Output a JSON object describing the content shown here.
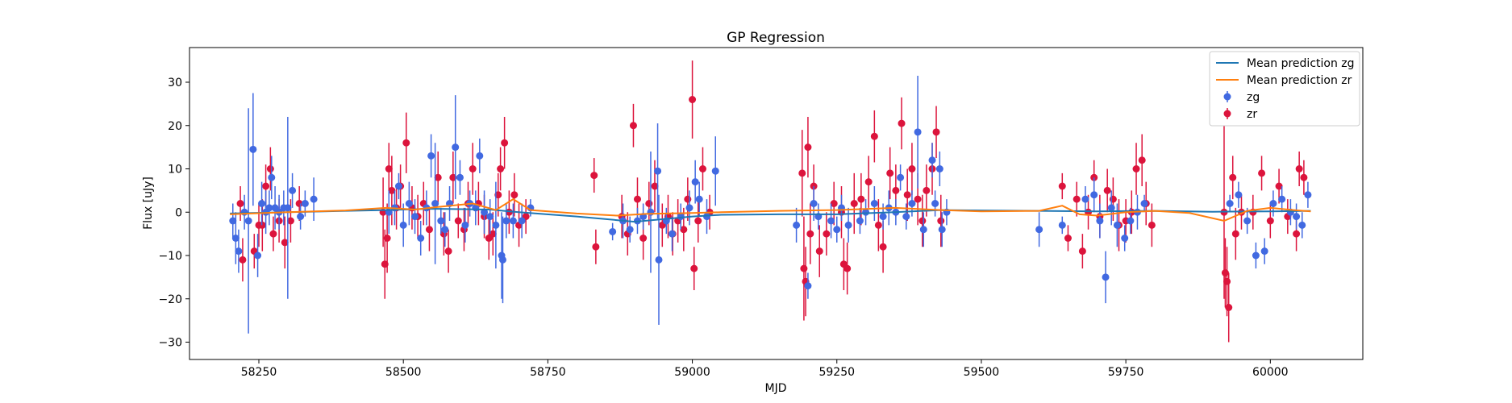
{
  "chart_data": {
    "type": "scatter",
    "title": "GP Regression",
    "xlabel": "MJD",
    "ylabel": "Flux [uJy]",
    "xlim": [
      58130,
      60160
    ],
    "ylim": [
      -34,
      38
    ],
    "xticks": [
      58250,
      58500,
      58750,
      59000,
      59250,
      59500,
      59750,
      60000
    ],
    "yticks": [
      -30,
      -20,
      -10,
      0,
      10,
      20,
      30
    ],
    "grid": false,
    "legend_position": "top-right",
    "colors": {
      "zg_line": "#1f77b4",
      "zr_line": "#ff7f0e",
      "zg_points": "#4169e1",
      "zr_points": "#dc143c"
    },
    "series": [
      {
        "name": "Mean prediction zg",
        "kind": "line",
        "x": [
          58200,
          58300,
          58400,
          58470,
          58550,
          58650,
          58700,
          58800,
          58900,
          59000,
          59050,
          59150,
          59250,
          59350,
          59430,
          59500,
          59600,
          59700,
          59800,
          59900,
          60000,
          60070
        ],
        "y": [
          -0.3,
          0.0,
          0.3,
          0.5,
          0.8,
          0.6,
          0.0,
          -1.0,
          -2.2,
          -1.0,
          -0.6,
          -0.5,
          -0.5,
          0.0,
          0.5,
          0.4,
          0.3,
          0.2,
          0.3,
          0.1,
          0.2,
          0.3
        ]
      },
      {
        "name": "Mean prediction zr",
        "kind": "line",
        "x": [
          58200,
          58260,
          58300,
          58400,
          58470,
          58520,
          58560,
          58620,
          58660,
          58690,
          58720,
          58800,
          58870,
          58920,
          59000,
          59050,
          59150,
          59250,
          59350,
          59430,
          59500,
          59600,
          59640,
          59670,
          59700,
          59750,
          59800,
          59860,
          59920,
          59960,
          60000,
          60040,
          60070
        ],
        "y": [
          -0.5,
          -0.2,
          0.0,
          0.4,
          1.0,
          0.6,
          1.2,
          2.0,
          0.5,
          3.0,
          0.5,
          -0.3,
          -0.8,
          -0.4,
          -0.2,
          0.0,
          0.3,
          0.5,
          1.0,
          0.5,
          0.2,
          0.3,
          1.5,
          -0.5,
          -0.8,
          0.0,
          0.3,
          -0.2,
          -2.0,
          0.3,
          1.0,
          0.5,
          0.2
        ]
      },
      {
        "name": "zg",
        "kind": "errorbar",
        "x": [
          58205,
          58210,
          58215,
          58225,
          58232,
          58240,
          58248,
          58255,
          58262,
          58268,
          58272,
          58278,
          58285,
          58293,
          58300,
          58308,
          58322,
          58330,
          58345,
          58475,
          58485,
          58492,
          58500,
          58510,
          58520,
          58530,
          58540,
          58548,
          58555,
          58565,
          58572,
          58580,
          58590,
          58598,
          58607,
          58615,
          58625,
          58632,
          58640,
          58650,
          58660,
          58670,
          58672,
          58678,
          58690,
          58705,
          58720,
          58862,
          58880,
          58892,
          58905,
          58915,
          58928,
          58940,
          58942,
          58955,
          58965,
          58980,
          58995,
          59005,
          59012,
          59025,
          59040,
          59180,
          59200,
          59210,
          59218,
          59240,
          59250,
          59258,
          59270,
          59290,
          59300,
          59315,
          59330,
          59340,
          59352,
          59360,
          59370,
          59380,
          59390,
          59400,
          59415,
          59420,
          59428,
          59432,
          59440,
          59600,
          59640,
          59680,
          59695,
          59705,
          59715,
          59725,
          59735,
          59748,
          59758,
          59770,
          59782,
          59930,
          59945,
          59960,
          59975,
          59990,
          60005,
          60020,
          60035,
          60045,
          60055,
          60065
        ],
        "y": [
          -2,
          -6,
          -9,
          0,
          -2,
          14.5,
          -10,
          2,
          0,
          1,
          8,
          1,
          0,
          1,
          1,
          5,
          -1,
          2,
          3,
          0,
          1,
          6,
          -3,
          2,
          -1,
          -6,
          1,
          13,
          2,
          -2,
          -4,
          2,
          15,
          8,
          -3,
          2,
          1,
          13,
          0,
          -1,
          -3,
          -10,
          -11,
          -2,
          -2,
          -2,
          1,
          -4.5,
          -2,
          -4,
          -2,
          -1,
          0,
          9.5,
          -11,
          -2,
          -5,
          -1,
          1,
          7,
          3,
          -1,
          9.5,
          -3,
          -17,
          2,
          -1,
          -2,
          -4,
          1,
          -3,
          -2,
          0,
          2,
          -1,
          1,
          0,
          8,
          -1,
          2,
          18.5,
          -4,
          12,
          2,
          10,
          -4,
          0,
          -4,
          -3,
          3,
          4,
          -2,
          -15,
          1,
          -3,
          -6,
          -2,
          0,
          2,
          2,
          4,
          -2,
          -10,
          -9,
          2,
          3,
          0,
          -1,
          -3,
          4
        ],
        "err": [
          4,
          6,
          5,
          4,
          26,
          13,
          5,
          5,
          5,
          4,
          5,
          5,
          4,
          4,
          21,
          4,
          3,
          3,
          5,
          5,
          4,
          3,
          5,
          5,
          4,
          4,
          4,
          5,
          14,
          3,
          4,
          4,
          12,
          4,
          4,
          3,
          4,
          4,
          5,
          4,
          10,
          10,
          10,
          4,
          4,
          4,
          2,
          2,
          4,
          3,
          3,
          3,
          14,
          11,
          15,
          3,
          4,
          3,
          4,
          5,
          4,
          4,
          8,
          4,
          3,
          4,
          3,
          4,
          3,
          3,
          4,
          3,
          3,
          4,
          3,
          4,
          3,
          3,
          3,
          3,
          13,
          4,
          4,
          3,
          4,
          4,
          3,
          4,
          2,
          3,
          4,
          4,
          6,
          4,
          5,
          3,
          3,
          4,
          2,
          2,
          3,
          3,
          3,
          3,
          3,
          3,
          3,
          3,
          3,
          3
        ]
      },
      {
        "name": "zr",
        "kind": "errorbar",
        "x": [
          58218,
          58222,
          58242,
          58250,
          58256,
          58262,
          58270,
          58275,
          58285,
          58295,
          58305,
          58320,
          58465,
          58468,
          58472,
          58475,
          58480,
          58488,
          58495,
          58505,
          58515,
          58525,
          58535,
          58545,
          58560,
          58570,
          58578,
          58586,
          58595,
          58605,
          58612,
          58620,
          58630,
          58640,
          58648,
          58655,
          58664,
          58668,
          58675,
          58683,
          58692,
          58700,
          58712,
          58830,
          58833,
          58878,
          58888,
          58898,
          58905,
          58915,
          58925,
          58935,
          58948,
          58958,
          58966,
          58975,
          58985,
          58992,
          59000,
          59003,
          59010,
          59018,
          59030,
          59190,
          59193,
          59196,
          59200,
          59204,
          59210,
          59220,
          59232,
          59245,
          59258,
          59262,
          59268,
          59280,
          59292,
          59305,
          59315,
          59322,
          59330,
          59342,
          59352,
          59362,
          59372,
          59380,
          59390,
          59398,
          59405,
          59415,
          59422,
          59430,
          59640,
          59650,
          59665,
          59675,
          59685,
          59695,
          59705,
          59718,
          59728,
          59738,
          59750,
          59760,
          59768,
          59778,
          59785,
          59795,
          59920,
          59922,
          59925,
          59928,
          59935,
          59940,
          59950,
          59970,
          59985,
          60000,
          60015,
          60030,
          60045,
          60050,
          60058
        ],
        "y": [
          2,
          -11,
          -9,
          -3,
          -3,
          6,
          10,
          -5,
          -2,
          -7,
          -2,
          2,
          0,
          -12,
          -6,
          10,
          5,
          1,
          6,
          16,
          1,
          -1,
          2,
          -4,
          8,
          -5,
          -9,
          8,
          -2,
          -4,
          2,
          10,
          2,
          -1,
          -6,
          -5,
          4,
          10,
          16,
          0,
          4,
          -3,
          -1,
          8.5,
          -8,
          -1,
          -5,
          20,
          3,
          -6,
          2,
          6,
          -3,
          -1,
          -5,
          -2,
          -4,
          3,
          26,
          -13,
          -2,
          10,
          0,
          9,
          -13,
          -16,
          15,
          -5,
          6,
          -9,
          -5,
          2,
          0,
          -12,
          -13,
          2,
          3,
          7,
          17.5,
          -3,
          -8,
          9,
          5,
          20.5,
          4,
          10,
          3,
          -2,
          5,
          10,
          18.5,
          -2,
          6,
          -6,
          3,
          -9,
          0,
          8,
          -1,
          5,
          3,
          -3,
          -2,
          0,
          10,
          12,
          2,
          -3,
          0,
          -14,
          -16,
          -22,
          8,
          -5,
          0,
          0,
          9,
          -2,
          6,
          -1,
          -5,
          10,
          8
        ],
        "err": [
          4,
          5,
          4,
          5,
          6,
          5,
          5,
          4,
          5,
          6,
          5,
          4,
          8,
          8,
          8,
          6,
          8,
          5,
          5,
          7,
          5,
          5,
          5,
          5,
          6,
          5,
          5,
          6,
          4,
          5,
          5,
          6,
          5,
          5,
          5,
          5,
          5,
          5,
          6,
          5,
          5,
          5,
          4,
          4,
          4,
          5,
          5,
          5,
          5,
          5,
          5,
          6,
          5,
          5,
          5,
          5,
          5,
          5,
          9,
          5,
          5,
          5,
          4,
          10,
          12,
          8,
          7,
          7,
          5,
          6,
          5,
          5,
          6,
          6,
          6,
          7,
          6,
          6,
          6,
          6,
          6,
          6,
          6,
          6,
          6,
          6,
          6,
          6,
          6,
          6,
          6,
          6,
          3,
          3,
          4,
          4,
          4,
          4,
          5,
          5,
          5,
          6,
          5,
          5,
          6,
          6,
          5,
          5,
          20,
          8,
          8,
          8,
          5,
          6,
          4,
          4,
          4,
          4,
          4,
          4,
          4,
          4,
          4
        ]
      }
    ]
  }
}
